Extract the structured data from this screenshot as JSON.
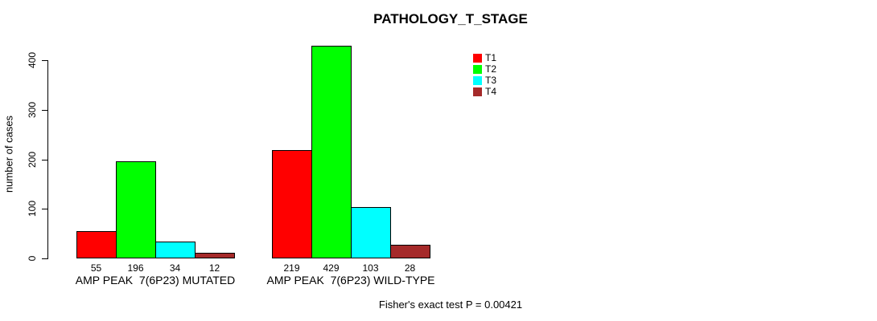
{
  "title": "PATHOLOGY_T_STAGE",
  "footer": "Fisher's exact test P = 0.00421",
  "chart_data": {
    "type": "bar",
    "title": "PATHOLOGY_T_STAGE",
    "xlabel": "",
    "ylabel": "number of cases",
    "ylim": [
      0,
      400
    ],
    "yticks": [
      0,
      100,
      200,
      300,
      400
    ],
    "grid": false,
    "legend_position": "top-right",
    "legend": [
      {
        "label": "T1",
        "color": "#FF0000"
      },
      {
        "label": "T2",
        "color": "#00FF00"
      },
      {
        "label": "T3",
        "color": "#00FFFF"
      },
      {
        "label": "T4",
        "color": "#A52A2A"
      }
    ],
    "categories": [
      "AMP PEAK  7(6P23) MUTATED",
      "AMP PEAK  7(6P23) WILD-TYPE"
    ],
    "series": [
      {
        "name": "T1",
        "values": [
          55,
          219
        ]
      },
      {
        "name": "T2",
        "values": [
          196,
          429
        ]
      },
      {
        "name": "T3",
        "values": [
          34,
          103
        ]
      },
      {
        "name": "T4",
        "values": [
          12,
          28
        ]
      }
    ],
    "groups": [
      {
        "label": "AMP PEAK  7(6P23) MUTATED",
        "values": [
          55,
          196,
          34,
          12
        ]
      },
      {
        "label": "AMP PEAK  7(6P23) WILD-TYPE",
        "values": [
          219,
          429,
          103,
          28
        ]
      }
    ],
    "annotation": "Fisher's exact test P = 0.00421"
  }
}
